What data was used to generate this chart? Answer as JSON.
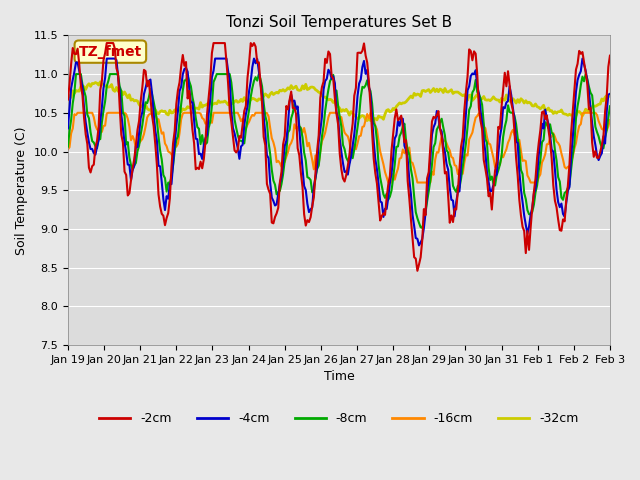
{
  "title": "Tonzi Soil Temperatures Set B",
  "xlabel": "Time",
  "ylabel": "Soil Temperature (C)",
  "annotation": "TZ_fmet",
  "ylim": [
    7.5,
    11.5
  ],
  "background_color": "#e8e8e8",
  "plot_bg_color": "#dcdcdc",
  "series": {
    "-2cm": {
      "color": "#cc0000",
      "lw": 1.5
    },
    "-4cm": {
      "color": "#0000cc",
      "lw": 1.5
    },
    "-8cm": {
      "color": "#00aa00",
      "lw": 1.5
    },
    "-16cm": {
      "color": "#ff8800",
      "lw": 1.5
    },
    "-32cm": {
      "color": "#cccc00",
      "lw": 2.0
    }
  },
  "legend_labels": [
    "-2cm",
    "-4cm",
    "-8cm",
    "-16cm",
    "-32cm"
  ],
  "legend_colors": [
    "#cc0000",
    "#0000cc",
    "#00aa00",
    "#ff8800",
    "#cccc00"
  ],
  "xtick_labels": [
    "Jan 19",
    "Jan 20",
    "Jan 21",
    "Jan 22",
    "Jan 23",
    "Jan 24",
    "Jan 25",
    "Jan 26",
    "Jan 27",
    "Jan 28",
    "Jan 29",
    "Jan 30",
    "Jan 31",
    "Feb 1",
    "Feb 2",
    "Feb 3"
  ],
  "ytick_values": [
    7.5,
    8.0,
    8.5,
    9.0,
    9.5,
    10.0,
    10.5,
    11.0,
    11.5
  ],
  "num_points": 336
}
